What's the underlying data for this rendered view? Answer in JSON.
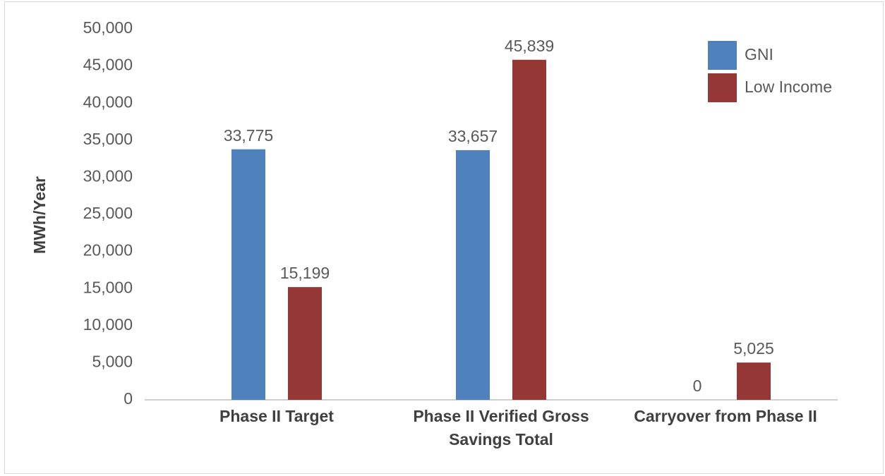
{
  "chart_data": {
    "type": "bar",
    "y_label": "MWh/Year",
    "categories": [
      "Phase II Target",
      "Phase II Verified Gross Savings Total",
      "Carryover from Phase II"
    ],
    "series": [
      {
        "name": "GNI",
        "color": "#4f81bd",
        "values": [
          33775,
          33657,
          0
        ],
        "value_labels": [
          "33,775",
          "33,657",
          "0"
        ]
      },
      {
        "name": "Low Income",
        "color": "#953735",
        "values": [
          15199,
          45839,
          5025
        ],
        "value_labels": [
          "15,199",
          "45,839",
          "5,025"
        ]
      }
    ],
    "ylim": [
      0,
      50000
    ],
    "yticks": [
      0,
      {
        "value": 5000,
        "label": "5,000"
      },
      {
        "value": 10000,
        "label": "10,000"
      },
      {
        "value": 15000,
        "label": "15,000"
      },
      {
        "value": 20000,
        "label": "20,000"
      },
      {
        "value": 25000,
        "label": "25,000"
      },
      {
        "value": 30000,
        "label": "30,000"
      },
      {
        "value": 35000,
        "label": "35,000"
      },
      {
        "value": 40000,
        "label": "40,000"
      },
      {
        "value": 45000,
        "label": "45,000"
      },
      {
        "value": 50000,
        "label": "50,000"
      }
    ],
    "legend": "top-right",
    "grid": false
  }
}
